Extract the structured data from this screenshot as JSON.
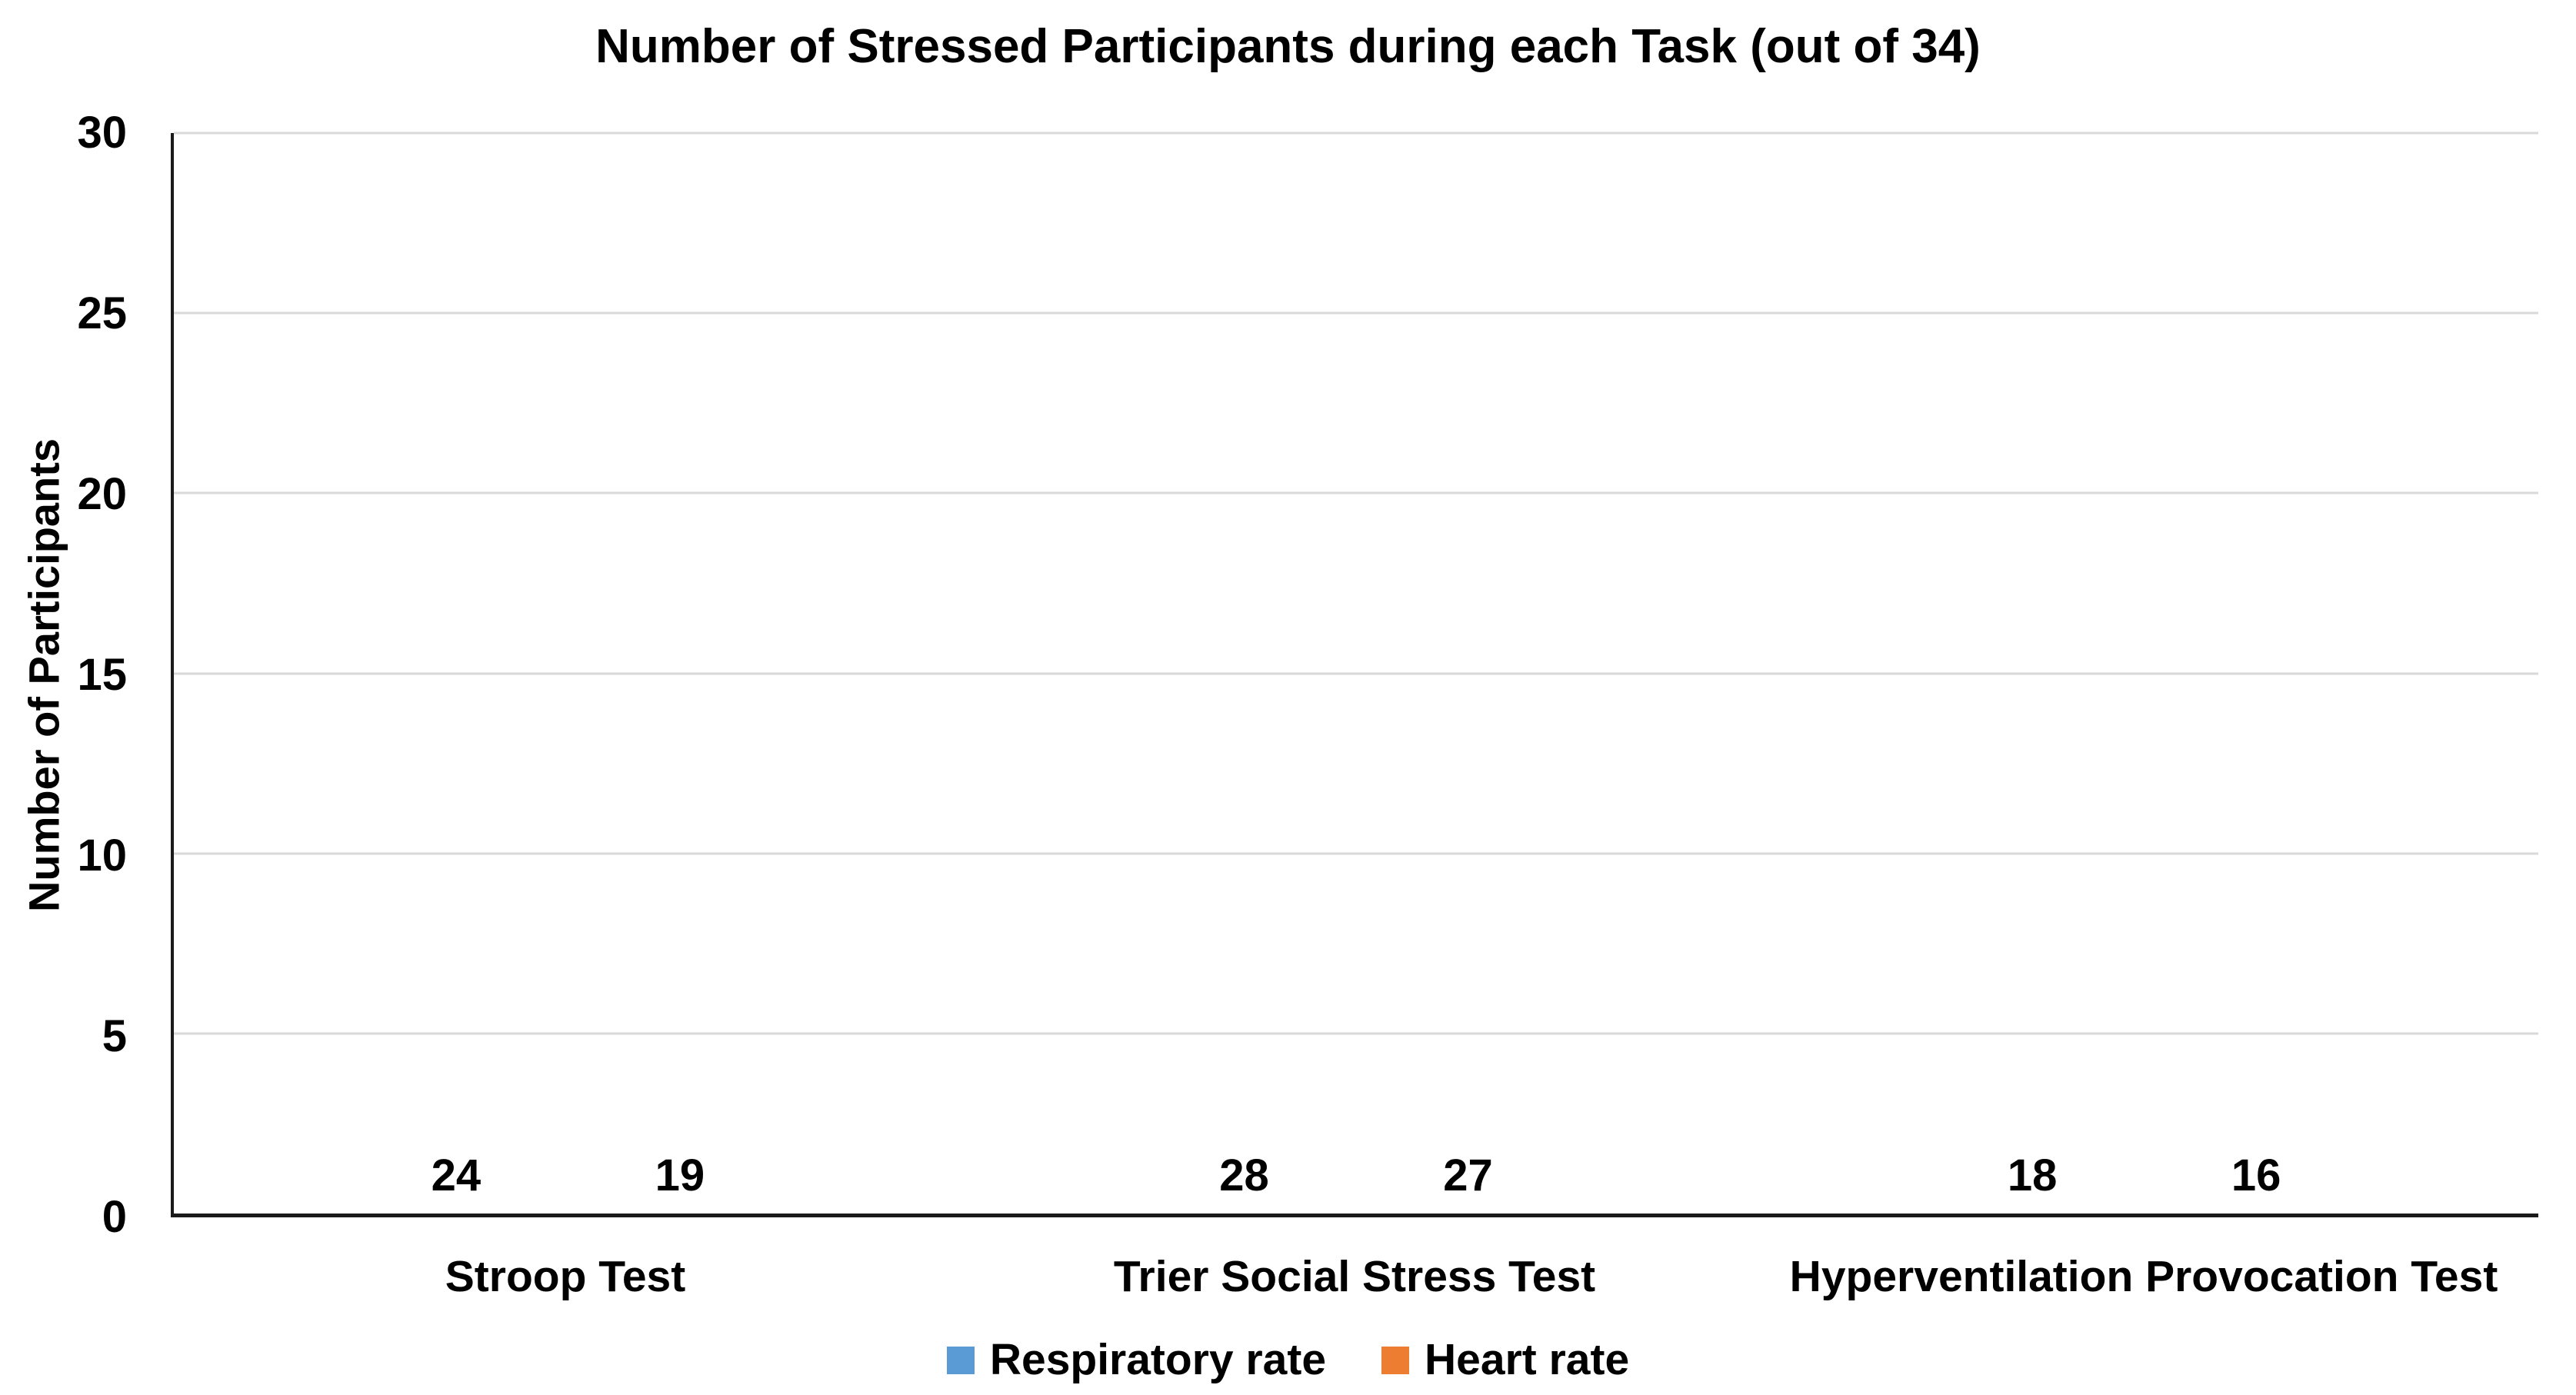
{
  "chart_data": {
    "type": "bar",
    "title": "Number of Stressed Participants during each Task (out of 34)",
    "categories": [
      "Stroop Test",
      "Trier Social Stress Test",
      "Hyperventilation Provocation Test"
    ],
    "series": [
      {
        "name": "Respiratory rate",
        "color": "#5B9BD5",
        "values": [
          24,
          28,
          18
        ]
      },
      {
        "name": "Heart rate",
        "color": "#ED7D31",
        "values": [
          19,
          27,
          16
        ]
      }
    ],
    "xlabel": "",
    "ylabel": "Number of Participants",
    "ylim": [
      0,
      30
    ],
    "yticks": [
      0,
      5,
      10,
      15,
      20,
      25,
      30
    ],
    "grid": true,
    "grid_color": "#D9D9D9",
    "axis_color": "#1A1A1A",
    "text_color": "#000000",
    "legend_position": "bottom"
  }
}
